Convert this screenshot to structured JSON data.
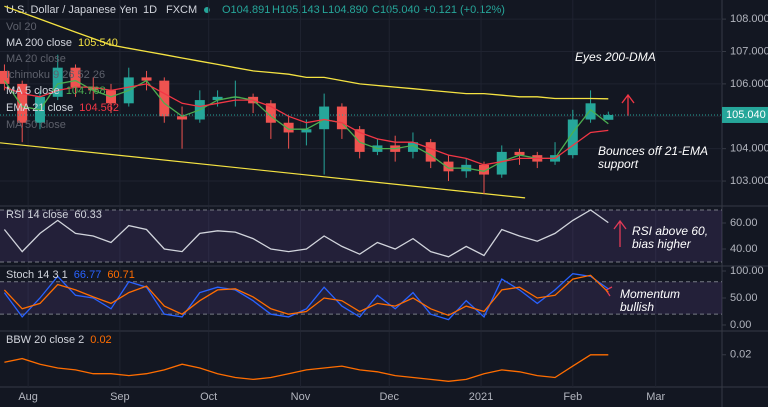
{
  "header": {
    "symbol": "U.S. Dollar / Japanese Yen",
    "interval": "1D",
    "source": "FXCM",
    "ohlc": [
      "O104.891",
      "H105.143",
      "L104.890",
      "C105.040",
      "+0.121 (+0.12%)"
    ]
  },
  "chart_data": [
    {
      "type": "candlestick",
      "x": [
        -8,
        -2,
        4,
        10,
        16,
        22,
        28,
        34,
        40,
        46,
        52,
        58,
        64,
        70,
        76,
        82,
        88,
        94,
        100,
        106,
        112,
        118,
        124,
        130,
        136,
        142,
        148,
        154,
        160,
        166,
        172,
        178,
        184,
        190,
        196
      ],
      "open": [
        106.4,
        106.0,
        104.8,
        105.6,
        106.5,
        105.9,
        105.8,
        105.4,
        106.2,
        106.1,
        105.0,
        104.9,
        105.5,
        105.6,
        105.6,
        105.4,
        104.8,
        104.5,
        104.6,
        105.3,
        104.6,
        103.9,
        104.1,
        103.9,
        104.2,
        103.6,
        103.3,
        103.5,
        103.2,
        103.9,
        103.8,
        103.6,
        103.8,
        104.9,
        104.891
      ],
      "high": [
        106.6,
        106.1,
        105.8,
        106.9,
        106.6,
        106.2,
        106.0,
        106.5,
        106.4,
        106.2,
        105.3,
        105.8,
        105.8,
        106.1,
        105.7,
        105.5,
        105.0,
        104.9,
        105.7,
        105.4,
        104.7,
        104.3,
        104.4,
        104.5,
        104.3,
        103.8,
        103.7,
        103.6,
        104.1,
        104.0,
        103.9,
        104.2,
        105.2,
        105.8,
        105.143
      ],
      "low": [
        105.8,
        104.2,
        104.6,
        105.5,
        105.6,
        105.5,
        105.1,
        105.3,
        105.8,
        104.8,
        104.0,
        104.8,
        105.3,
        105.3,
        105.1,
        104.3,
        104.0,
        104.1,
        103.2,
        104.3,
        103.7,
        103.8,
        103.6,
        103.7,
        103.4,
        103.0,
        103.1,
        102.6,
        103.1,
        103.5,
        103.4,
        103.5,
        103.7,
        104.8,
        104.89
      ],
      "close": [
        106.0,
        104.8,
        105.6,
        106.5,
        105.9,
        105.8,
        105.4,
        106.2,
        106.1,
        105.0,
        104.9,
        105.5,
        105.6,
        105.6,
        105.4,
        104.8,
        104.5,
        104.6,
        105.3,
        104.6,
        103.9,
        104.1,
        103.9,
        104.2,
        103.6,
        103.3,
        103.5,
        103.2,
        103.9,
        103.8,
        103.6,
        103.8,
        104.9,
        105.4,
        105.04
      ],
      "up_color": "#26a69a",
      "down_color": "#ef5350",
      "series": [
        {
          "name": "MA 200 close",
          "legend_value": "105.540",
          "color": "#f5e342",
          "values": [
            108.4,
            108.2,
            108.0,
            107.8,
            107.6,
            107.4,
            107.2,
            107.1,
            107.0,
            106.9,
            106.8,
            106.7,
            106.6,
            106.5,
            106.4,
            106.35,
            106.3,
            106.2,
            106.2,
            106.1,
            106.0,
            105.95,
            105.9,
            105.85,
            105.8,
            105.75,
            105.7,
            105.7,
            105.65,
            105.6,
            105.6,
            105.55,
            105.55,
            105.55,
            105.54
          ]
        },
        {
          "name": "MA 5 close",
          "legend_value": "104.768",
          "color": "#4caf50",
          "values": [
            106.1,
            105.3,
            105.2,
            106.0,
            106.1,
            105.8,
            105.6,
            105.8,
            106.1,
            105.4,
            105.0,
            105.2,
            105.5,
            105.6,
            105.5,
            105.0,
            104.6,
            104.6,
            104.9,
            104.8,
            104.2,
            104.0,
            104.0,
            104.1,
            103.8,
            103.4,
            103.4,
            103.3,
            103.6,
            103.8,
            103.7,
            103.7,
            104.5,
            105.2,
            104.768
          ]
        },
        {
          "name": "EMA 21 close",
          "legend_value": "104.562",
          "color": "#f23645",
          "values": [
            105.9,
            105.7,
            105.6,
            105.8,
            105.9,
            105.9,
            105.8,
            105.9,
            106.0,
            105.7,
            105.4,
            105.3,
            105.4,
            105.5,
            105.5,
            105.3,
            105.0,
            104.8,
            104.9,
            104.8,
            104.5,
            104.3,
            104.2,
            104.2,
            104.0,
            103.8,
            103.7,
            103.5,
            103.6,
            103.7,
            103.7,
            103.7,
            104.1,
            104.5,
            104.562
          ]
        }
      ],
      "inactive_legend": [
        "Vol 20",
        "MA 20 close",
        "Ichimoku 9 26 52 26",
        "MA 50 close"
      ],
      "trendline": {
        "x": [
          -9.5,
          167.9
        ],
        "values": [
          104.18,
          102.48
        ],
        "color": "#f5e342"
      },
      "last_price": {
        "value": 105.04,
        "label": "105.040"
      },
      "annotations": [
        [
          "Eyes 200-DMA"
        ],
        [
          "Bounces off 21-EMA",
          "support"
        ]
      ],
      "ylim": [
        102.26,
        108.59
      ],
      "yticks": [
        {
          "value": 103,
          "label": "103.000"
        },
        {
          "value": 104,
          "label": "104.000"
        },
        {
          "value": 105,
          "label": "105.000"
        },
        {
          "value": 106,
          "label": "106.000"
        },
        {
          "value": 107,
          "label": "107.000"
        },
        {
          "value": 108,
          "label": "108.000"
        }
      ],
      "xlim": [
        -9.5,
        234.4
      ],
      "xticks": [
        {
          "value": 0,
          "label": "Aug"
        },
        {
          "value": 31,
          "label": "Sep"
        },
        {
          "value": 61,
          "label": "Oct"
        },
        {
          "value": 92,
          "label": "Nov"
        },
        {
          "value": 122,
          "label": "Dec"
        },
        {
          "value": 153,
          "label": "2021"
        },
        {
          "value": 184,
          "label": "Feb"
        },
        {
          "value": 212,
          "label": "Mar"
        }
      ],
      "grid": true
    },
    {
      "type": "line",
      "title": "RSI 14 close",
      "x": [
        -8,
        -2,
        4,
        10,
        16,
        22,
        28,
        34,
        40,
        46,
        52,
        58,
        64,
        70,
        76,
        82,
        88,
        94,
        100,
        106,
        112,
        118,
        124,
        130,
        136,
        142,
        148,
        154,
        160,
        166,
        172,
        178,
        184,
        190,
        196
      ],
      "series": [
        {
          "legend_value": "60.33",
          "color": "#d1d4dc",
          "values": [
            55,
            38,
            52,
            62,
            52,
            50,
            45,
            58,
            55,
            40,
            38,
            52,
            54,
            53,
            48,
            40,
            38,
            40,
            50,
            42,
            36,
            45,
            40,
            48,
            38,
            34,
            42,
            35,
            55,
            50,
            46,
            52,
            62,
            70,
            60.33
          ]
        }
      ],
      "band": [
        30,
        70
      ],
      "band_color": "#7e57c2",
      "annotations": [
        [
          "RSI above 60,",
          "bias higher"
        ]
      ],
      "ylim": [
        27.7,
        72.3
      ],
      "yticks": [
        {
          "value": 40,
          "label": "40.00"
        },
        {
          "value": 60,
          "label": "60.00"
        }
      ]
    },
    {
      "type": "line",
      "title": "Stoch 14 3 1",
      "x": [
        -8,
        -2,
        4,
        10,
        16,
        22,
        28,
        34,
        40,
        46,
        52,
        58,
        64,
        70,
        76,
        82,
        88,
        94,
        100,
        106,
        112,
        118,
        124,
        130,
        136,
        142,
        148,
        154,
        160,
        166,
        172,
        178,
        184,
        190,
        196
      ],
      "series": [
        {
          "legend_value": "66.77",
          "color": "#2962ff",
          "values": [
            60,
            15,
            50,
            90,
            55,
            50,
            30,
            80,
            70,
            20,
            15,
            60,
            70,
            65,
            45,
            20,
            15,
            30,
            70,
            35,
            15,
            55,
            30,
            60,
            20,
            10,
            45,
            15,
            85,
            65,
            40,
            65,
            95,
            90,
            66.77
          ]
        },
        {
          "legend_value": "60.71",
          "color": "#ff6d00",
          "values": [
            65,
            30,
            40,
            75,
            65,
            52,
            40,
            60,
            72,
            35,
            20,
            45,
            65,
            67,
            52,
            30,
            20,
            25,
            50,
            45,
            25,
            40,
            35,
            50,
            30,
            18,
            35,
            25,
            65,
            70,
            50,
            55,
            85,
            92,
            60.71
          ]
        }
      ],
      "band": [
        20,
        80
      ],
      "band_color": "#7e57c2",
      "annotations": [
        [
          "Momentum",
          "bullish"
        ]
      ],
      "ylim": [
        -9.3,
        107.4
      ],
      "yticks": [
        {
          "value": 0,
          "label": "0.00"
        },
        {
          "value": 50,
          "label": "50.00"
        },
        {
          "value": 100,
          "label": "100.00"
        }
      ]
    },
    {
      "type": "line",
      "title": "BBW 20 close 2",
      "x": [
        -8,
        -2,
        4,
        10,
        16,
        22,
        28,
        34,
        40,
        46,
        52,
        58,
        64,
        70,
        76,
        82,
        88,
        94,
        100,
        106,
        112,
        118,
        124,
        130,
        136,
        142,
        148,
        154,
        160,
        166,
        172,
        178,
        184,
        190,
        196
      ],
      "series": [
        {
          "legend_value": "0.02",
          "color": "#ff6d00",
          "values": [
            0.016,
            0.018,
            0.015,
            0.013,
            0.012,
            0.01,
            0.01,
            0.009,
            0.01,
            0.012,
            0.015,
            0.013,
            0.01,
            0.008,
            0.007,
            0.008,
            0.01,
            0.012,
            0.013,
            0.014,
            0.012,
            0.011,
            0.009,
            0.008,
            0.007,
            0.006,
            0.007,
            0.01,
            0.012,
            0.011,
            0.009,
            0.008,
            0.014,
            0.02,
            0.02
          ]
        }
      ],
      "ylim": [
        0.003,
        0.032
      ],
      "yticks": [
        0.02
      ]
    }
  ]
}
